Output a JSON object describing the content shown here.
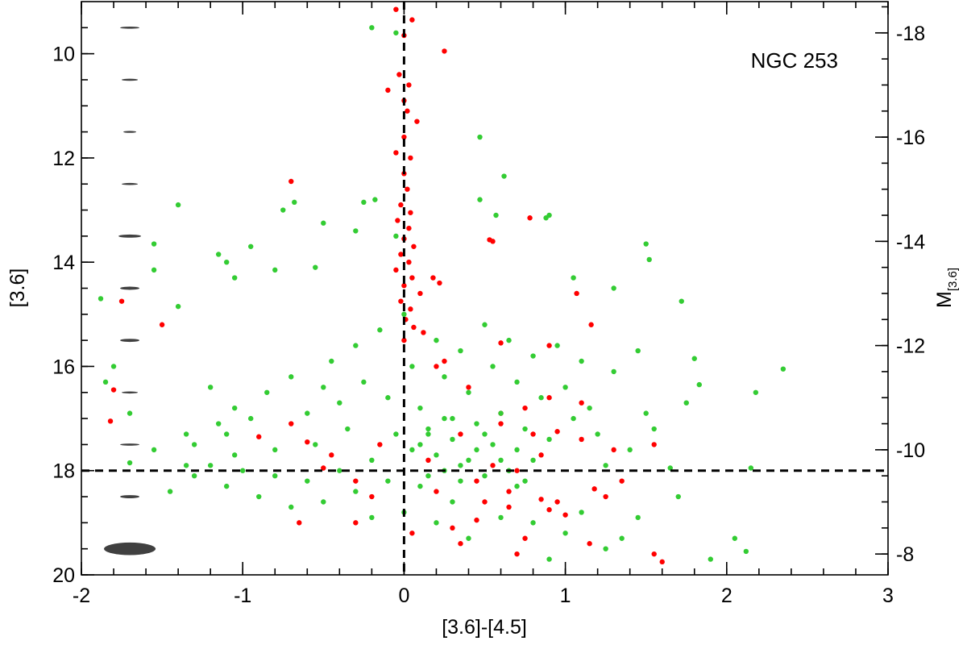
{
  "chart_data": {
    "type": "scatter",
    "label": "NGC 253",
    "xlabel": "[3.6]-[4.5]",
    "ylabel": "[3.6]",
    "y2label_main": "M",
    "y2label_sub": "[3.6]",
    "xlim": [
      -2,
      3
    ],
    "ylim": [
      20,
      9
    ],
    "y2lim": [
      -7.6,
      -18.6
    ],
    "xticks": [
      "-2",
      "-1",
      "0",
      "1",
      "2",
      "3"
    ],
    "yticks": [
      "10",
      "12",
      "14",
      "16",
      "18",
      "20"
    ],
    "y2ticks": [
      "-8",
      "-10",
      "-12",
      "-14",
      "-16",
      "-18"
    ],
    "ref_lines": {
      "x": 0,
      "y": 18,
      "style": "dashed"
    },
    "grid": false,
    "colors": {
      "series_a": "#ff0000",
      "series_b": "#33cc33",
      "error_bar": "#404040"
    },
    "error_bars": [
      {
        "mag": 9.5,
        "x_err": 0.06,
        "y_err": 0.02
      },
      {
        "mag": 10.5,
        "x_err": 0.05,
        "y_err": 0.02
      },
      {
        "mag": 11.5,
        "x_err": 0.04,
        "y_err": 0.01
      },
      {
        "mag": 12.5,
        "x_err": 0.05,
        "y_err": 0.02
      },
      {
        "mag": 13.5,
        "x_err": 0.07,
        "y_err": 0.03
      },
      {
        "mag": 14.5,
        "x_err": 0.06,
        "y_err": 0.03
      },
      {
        "mag": 15.5,
        "x_err": 0.06,
        "y_err": 0.03
      },
      {
        "mag": 16.5,
        "x_err": 0.05,
        "y_err": 0.02
      },
      {
        "mag": 17.5,
        "x_err": 0.06,
        "y_err": 0.02
      },
      {
        "mag": 18.5,
        "x_err": 0.06,
        "y_err": 0.03
      },
      {
        "mag": 19.5,
        "x_err": 0.16,
        "y_err": 0.12
      }
    ],
    "series": [
      {
        "color": "#ff0000",
        "points": [
          [
            -0.05,
            9.15
          ],
          [
            0.05,
            9.35
          ],
          [
            0.25,
            9.95
          ],
          [
            0.0,
            9.65
          ],
          [
            -0.03,
            10.4
          ],
          [
            0.03,
            10.6
          ],
          [
            -0.1,
            10.7
          ],
          [
            0.0,
            10.9
          ],
          [
            0.02,
            11.1
          ],
          [
            0.08,
            11.3
          ],
          [
            0.0,
            11.6
          ],
          [
            -0.05,
            11.9
          ],
          [
            0.04,
            12.0
          ],
          [
            0.0,
            12.3
          ],
          [
            0.02,
            12.6
          ],
          [
            -0.7,
            12.45
          ],
          [
            -0.02,
            12.9
          ],
          [
            0.04,
            13.05
          ],
          [
            -0.04,
            13.2
          ],
          [
            0.03,
            13.35
          ],
          [
            0.0,
            13.55
          ],
          [
            0.06,
            13.7
          ],
          [
            0.53,
            13.57
          ],
          [
            0.55,
            13.6
          ],
          [
            0.78,
            13.15
          ],
          [
            -0.02,
            13.85
          ],
          [
            0.03,
            14.0
          ],
          [
            -0.05,
            14.15
          ],
          [
            0.05,
            14.3
          ],
          [
            0.0,
            14.45
          ],
          [
            0.18,
            14.3
          ],
          [
            0.22,
            14.4
          ],
          [
            1.07,
            14.6
          ],
          [
            0.1,
            14.6
          ],
          [
            -0.02,
            14.75
          ],
          [
            0.04,
            14.9
          ],
          [
            -1.5,
            15.2
          ],
          [
            -1.75,
            14.75
          ],
          [
            0.01,
            15.1
          ],
          [
            0.06,
            15.25
          ],
          [
            1.16,
            15.2
          ],
          [
            0.12,
            15.35
          ],
          [
            0.0,
            15.5
          ],
          [
            0.6,
            15.55
          ],
          [
            0.9,
            15.6
          ],
          [
            -1.8,
            16.45
          ],
          [
            -1.82,
            17.05
          ],
          [
            0.9,
            16.6
          ],
          [
            1.1,
            16.7
          ],
          [
            0.75,
            16.8
          ],
          [
            0.6,
            16.9
          ],
          [
            -0.7,
            17.1
          ],
          [
            -0.9,
            17.35
          ],
          [
            -0.6,
            17.45
          ],
          [
            -0.45,
            17.7
          ],
          [
            0.8,
            17.3
          ],
          [
            0.95,
            17.25
          ],
          [
            1.1,
            17.4
          ],
          [
            1.55,
            17.5
          ],
          [
            1.3,
            17.6
          ],
          [
            0.85,
            17.7
          ],
          [
            0.55,
            17.9
          ],
          [
            0.7,
            18.0
          ],
          [
            -0.3,
            18.2
          ],
          [
            -0.5,
            17.95
          ],
          [
            1.35,
            18.2
          ],
          [
            1.18,
            18.35
          ],
          [
            0.2,
            18.4
          ],
          [
            -0.2,
            18.5
          ],
          [
            0.5,
            18.6
          ],
          [
            0.65,
            18.7
          ],
          [
            0.9,
            18.75
          ],
          [
            1.0,
            18.85
          ],
          [
            1.25,
            18.5
          ],
          [
            -0.3,
            19.0
          ],
          [
            1.55,
            19.6
          ],
          [
            1.6,
            19.75
          ],
          [
            1.15,
            19.4
          ],
          [
            0.7,
            19.6
          ],
          [
            0.35,
            19.4
          ],
          [
            -0.65,
            19.0
          ],
          [
            0.05,
            19.2
          ],
          [
            0.3,
            19.1
          ],
          [
            0.45,
            18.95
          ],
          [
            0.75,
            19.3
          ],
          [
            0.6,
            17.1
          ],
          [
            0.4,
            16.4
          ],
          [
            0.2,
            16.0
          ],
          [
            0.25,
            15.9
          ],
          [
            0.15,
            17.8
          ],
          [
            -0.15,
            17.5
          ],
          [
            0.35,
            17.3
          ],
          [
            0.45,
            18.2
          ],
          [
            0.65,
            18.4
          ],
          [
            0.85,
            18.55
          ],
          [
            0.95,
            18.6
          ]
        ]
      },
      {
        "color": "#33cc33",
        "points": [
          [
            -0.2,
            9.5
          ],
          [
            -0.05,
            9.6
          ],
          [
            0.47,
            11.6
          ],
          [
            0.62,
            12.35
          ],
          [
            -1.55,
            13.65
          ],
          [
            -1.4,
            12.9
          ],
          [
            -1.55,
            14.15
          ],
          [
            -1.4,
            14.85
          ],
          [
            -1.15,
            13.85
          ],
          [
            -1.1,
            14.0
          ],
          [
            -1.05,
            14.3
          ],
          [
            -0.95,
            13.7
          ],
          [
            -0.8,
            14.15
          ],
          [
            -0.75,
            13.0
          ],
          [
            -0.68,
            12.85
          ],
          [
            -0.5,
            13.25
          ],
          [
            -0.55,
            14.1
          ],
          [
            -0.3,
            13.4
          ],
          [
            -0.25,
            12.85
          ],
          [
            -0.18,
            12.8
          ],
          [
            -0.05,
            13.5
          ],
          [
            0.47,
            12.8
          ],
          [
            0.57,
            13.1
          ],
          [
            0.9,
            13.1
          ],
          [
            0.88,
            13.15
          ],
          [
            1.5,
            13.65
          ],
          [
            1.52,
            13.95
          ],
          [
            1.72,
            14.75
          ],
          [
            1.3,
            14.5
          ],
          [
            1.05,
            14.3
          ],
          [
            -1.88,
            14.7
          ],
          [
            -1.85,
            16.3
          ],
          [
            -1.8,
            16.0
          ],
          [
            -1.7,
            16.9
          ],
          [
            -1.7,
            17.85
          ],
          [
            -1.55,
            17.6
          ],
          [
            -1.35,
            17.3
          ],
          [
            -1.3,
            17.5
          ],
          [
            -1.2,
            16.4
          ],
          [
            -1.15,
            17.1
          ],
          [
            -1.1,
            17.3
          ],
          [
            -1.05,
            16.8
          ],
          [
            -0.95,
            17.0
          ],
          [
            -0.85,
            16.5
          ],
          [
            -0.8,
            17.6
          ],
          [
            -0.7,
            16.2
          ],
          [
            -0.6,
            16.9
          ],
          [
            -0.55,
            17.5
          ],
          [
            -0.5,
            16.4
          ],
          [
            -0.45,
            15.9
          ],
          [
            -0.4,
            16.7
          ],
          [
            -0.35,
            17.2
          ],
          [
            -0.3,
            15.6
          ],
          [
            -0.25,
            16.3
          ],
          [
            -0.2,
            17.8
          ],
          [
            -0.15,
            15.3
          ],
          [
            -0.1,
            16.6
          ],
          [
            0.0,
            15.0
          ],
          [
            0.05,
            16.0
          ],
          [
            0.1,
            16.8
          ],
          [
            0.15,
            17.3
          ],
          [
            0.2,
            15.5
          ],
          [
            0.25,
            16.2
          ],
          [
            0.3,
            17.0
          ],
          [
            0.35,
            15.7
          ],
          [
            0.4,
            16.5
          ],
          [
            0.45,
            17.6
          ],
          [
            0.5,
            15.2
          ],
          [
            0.55,
            16.0
          ],
          [
            0.6,
            16.9
          ],
          [
            0.65,
            15.5
          ],
          [
            0.7,
            16.3
          ],
          [
            0.75,
            17.2
          ],
          [
            0.8,
            15.8
          ],
          [
            0.85,
            16.6
          ],
          [
            0.9,
            17.4
          ],
          [
            0.95,
            15.6
          ],
          [
            1.0,
            16.4
          ],
          [
            1.05,
            17.0
          ],
          [
            1.1,
            15.9
          ],
          [
            1.15,
            16.8
          ],
          [
            1.2,
            17.3
          ],
          [
            1.25,
            17.9
          ],
          [
            1.3,
            16.1
          ],
          [
            1.4,
            17.6
          ],
          [
            1.45,
            15.7
          ],
          [
            1.5,
            16.9
          ],
          [
            1.55,
            17.2
          ],
          [
            1.65,
            17.95
          ],
          [
            1.75,
            16.7
          ],
          [
            1.8,
            15.85
          ],
          [
            1.83,
            16.35
          ],
          [
            2.05,
            19.3
          ],
          [
            2.12,
            19.55
          ],
          [
            2.15,
            17.95
          ],
          [
            2.18,
            16.5
          ],
          [
            2.35,
            16.05
          ],
          [
            1.9,
            19.7
          ],
          [
            1.7,
            18.5
          ],
          [
            1.45,
            18.9
          ],
          [
            1.35,
            19.3
          ],
          [
            1.25,
            19.5
          ],
          [
            1.1,
            18.8
          ],
          [
            1.0,
            19.2
          ],
          [
            0.9,
            19.7
          ],
          [
            0.8,
            19.0
          ],
          [
            0.7,
            18.3
          ],
          [
            0.6,
            18.9
          ],
          [
            0.5,
            18.1
          ],
          [
            0.4,
            19.3
          ],
          [
            0.3,
            18.6
          ],
          [
            0.2,
            19.0
          ],
          [
            0.1,
            18.3
          ],
          [
            0.0,
            18.8
          ],
          [
            -0.1,
            18.2
          ],
          [
            -0.2,
            18.9
          ],
          [
            -0.3,
            18.4
          ],
          [
            -0.4,
            18.0
          ],
          [
            -0.5,
            18.6
          ],
          [
            -0.6,
            18.2
          ],
          [
            -0.7,
            18.7
          ],
          [
            -0.8,
            18.1
          ],
          [
            -0.9,
            18.5
          ],
          [
            -1.0,
            18.0
          ],
          [
            -1.1,
            18.3
          ],
          [
            -1.2,
            17.9
          ],
          [
            -1.3,
            18.1
          ],
          [
            -1.45,
            18.4
          ],
          [
            -1.35,
            17.9
          ],
          [
            -1.05,
            17.7
          ],
          [
            0.1,
            17.5
          ],
          [
            0.2,
            17.7
          ],
          [
            0.3,
            17.4
          ],
          [
            0.4,
            17.8
          ],
          [
            0.15,
            17.2
          ],
          [
            0.25,
            17.0
          ],
          [
            0.35,
            17.9
          ],
          [
            0.45,
            17.1
          ],
          [
            0.55,
            17.5
          ],
          [
            0.05,
            17.6
          ],
          [
            -0.05,
            17.3
          ],
          [
            0.6,
            17.8
          ],
          [
            0.7,
            17.6
          ],
          [
            0.5,
            17.3
          ],
          [
            0.25,
            18.0
          ],
          [
            0.35,
            18.2
          ],
          [
            0.15,
            18.1
          ],
          [
            0.65,
            18.0
          ],
          [
            0.75,
            18.2
          ],
          [
            0.8,
            17.8
          ]
        ]
      }
    ]
  }
}
